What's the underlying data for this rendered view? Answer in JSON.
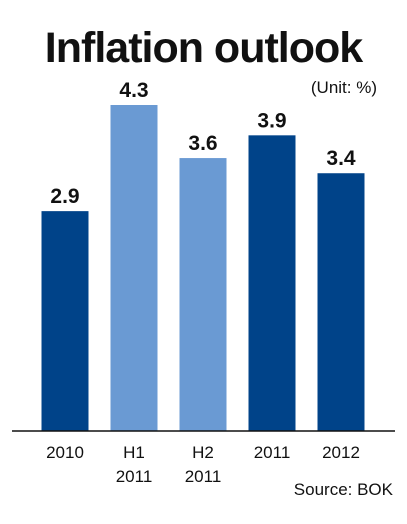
{
  "chart_data": {
    "type": "bar",
    "title": "Inflation outlook",
    "unit_note": "(Unit: %)",
    "source": "Source: BOK",
    "categories": [
      [
        "2010"
      ],
      [
        "H1",
        "2011"
      ],
      [
        "H2",
        "2011"
      ],
      [
        "2011"
      ],
      [
        "2012"
      ]
    ],
    "values": [
      2.9,
      4.3,
      3.6,
      3.9,
      3.4
    ],
    "value_labels": [
      "2.9",
      "4.3",
      "3.6",
      "3.9",
      "3.4"
    ],
    "bar_colors": [
      "#004389",
      "#6a9ad3",
      "#6a9ad3",
      "#004389",
      "#004389"
    ],
    "ylim": [
      0,
      4.3
    ],
    "grid": false,
    "legend": "none"
  }
}
